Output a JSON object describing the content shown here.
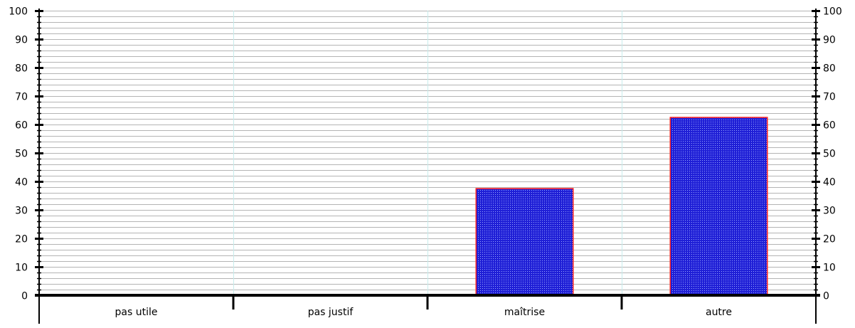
{
  "chart_data": {
    "type": "bar",
    "categories": [
      "pas utile",
      "pas justif",
      "maîtrise",
      "autre"
    ],
    "values": [
      0,
      0,
      37.5,
      62.5
    ],
    "ylim": [
      0,
      100
    ],
    "yticks": [
      0,
      10,
      20,
      30,
      40,
      50,
      60,
      70,
      80,
      90,
      100
    ],
    "tick_labels": [
      "0",
      "10",
      "20",
      "30",
      "40",
      "50",
      "60",
      "70",
      "80",
      "90",
      "100"
    ],
    "minor_step": 2,
    "right_axis": true,
    "grid": true,
    "legend": false,
    "colors": {
      "bar_fill": "#1f1fd6",
      "bar_pattern_dot": "#9aa6ff",
      "bar_edge": "#ff2020",
      "grid": "#b4b4b4",
      "category_divider": "#c8ecec",
      "axis": "#000000"
    }
  }
}
